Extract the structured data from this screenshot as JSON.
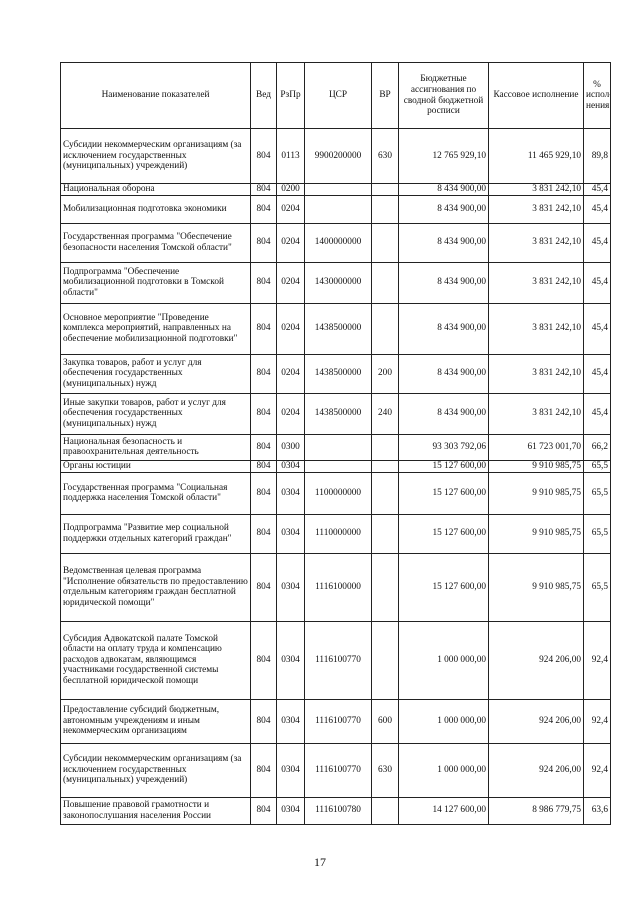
{
  "table": {
    "headers": [
      "Наименование показателей",
      "Вед",
      "РзПр",
      "ЦСР",
      "ВР",
      "Бюджетные ассигнования по сводной бюджетной росписи",
      "Кассовое исполнение",
      "% испол-нения"
    ],
    "rows": [
      {
        "name": "Субсидии некоммерческим организациям (за исключением государственных (муниципальных) учреждений)",
        "ved": "804",
        "rzpr": "0113",
        "csr": "9900200000",
        "vr": "630",
        "budget": "12 765 929,10",
        "cash": "11 465 929,10",
        "pct": "89,8"
      },
      {
        "name": "Национальная оборона",
        "ved": "804",
        "rzpr": "0200",
        "csr": "",
        "vr": "",
        "budget": "8 434 900,00",
        "cash": "3 831 242,10",
        "pct": "45,4"
      },
      {
        "name": "Мобилизационная подготовка экономики",
        "ved": "804",
        "rzpr": "0204",
        "csr": "",
        "vr": "",
        "budget": "8 434 900,00",
        "cash": "3 831 242,10",
        "pct": "45,4"
      },
      {
        "name": "Государственная программа \"Обеспечение безопасности населения Томской области\"",
        "ved": "804",
        "rzpr": "0204",
        "csr": "1400000000",
        "vr": "",
        "budget": "8 434 900,00",
        "cash": "3 831 242,10",
        "pct": "45,4"
      },
      {
        "name": "Подпрограмма \"Обеспечение мобилизационной подготовки в Томской области\"",
        "ved": "804",
        "rzpr": "0204",
        "csr": "1430000000",
        "vr": "",
        "budget": "8 434 900,00",
        "cash": "3 831 242,10",
        "pct": "45,4"
      },
      {
        "name": "Основное мероприятие \"Проведение комплекса мероприятий, направленных на обеспечение мобилизационной подготовки\"",
        "ved": "804",
        "rzpr": "0204",
        "csr": "1438500000",
        "vr": "",
        "budget": "8 434 900,00",
        "cash": "3 831 242,10",
        "pct": "45,4"
      },
      {
        "name": "Закупка товаров, работ и услуг для обеспечения государственных (муниципальных) нужд",
        "ved": "804",
        "rzpr": "0204",
        "csr": "1438500000",
        "vr": "200",
        "budget": "8 434 900,00",
        "cash": "3 831 242,10",
        "pct": "45,4"
      },
      {
        "name": "Иные закупки товаров, работ и услуг для обеспечения государственных (муниципальных) нужд",
        "ved": "804",
        "rzpr": "0204",
        "csr": "1438500000",
        "vr": "240",
        "budget": "8 434 900,00",
        "cash": "3 831 242,10",
        "pct": "45,4"
      },
      {
        "name": "Национальная безопасность и правоохранительная деятельность",
        "ved": "804",
        "rzpr": "0300",
        "csr": "",
        "vr": "",
        "budget": "93 303 792,06",
        "cash": "61 723 001,70",
        "pct": "66,2"
      },
      {
        "name": "Органы юстиции",
        "ved": "804",
        "rzpr": "0304",
        "csr": "",
        "vr": "",
        "budget": "15 127 600,00",
        "cash": "9 910 985,75",
        "pct": "65,5"
      },
      {
        "name": "Государственная программа \"Социальная поддержка населения Томской области\"",
        "ved": "804",
        "rzpr": "0304",
        "csr": "1100000000",
        "vr": "",
        "budget": "15 127 600,00",
        "cash": "9 910 985,75",
        "pct": "65,5"
      },
      {
        "name": "Подпрограмма \"Развитие мер социальной поддержки отдельных категорий граждан\"",
        "ved": "804",
        "rzpr": "0304",
        "csr": "1110000000",
        "vr": "",
        "budget": "15 127 600,00",
        "cash": "9 910 985,75",
        "pct": "65,5"
      },
      {
        "name": "Ведомственная целевая программа \"Исполнение обязательств по предоставлению отдельным категориям граждан бесплатной юридической помощи\"",
        "ved": "804",
        "rzpr": "0304",
        "csr": "1116100000",
        "vr": "",
        "budget": "15 127 600,00",
        "cash": "9 910 985,75",
        "pct": "65,5"
      },
      {
        "name": "Субсидия Адвокатской палате Томской области на оплату труда и компенсацию расходов адвокатам, являющимся участниками государственной системы бесплатной юридической помощи",
        "ved": "804",
        "rzpr": "0304",
        "csr": "1116100770",
        "vr": "",
        "budget": "1 000 000,00",
        "cash": "924 206,00",
        "pct": "92,4"
      },
      {
        "name": "Предоставление субсидий бюджетным, автономным учреждениям и иным некоммерческим организациям",
        "ved": "804",
        "rzpr": "0304",
        "csr": "1116100770",
        "vr": "600",
        "budget": "1 000 000,00",
        "cash": "924 206,00",
        "pct": "92,4"
      },
      {
        "name": "Субсидии некоммерческим организациям (за исключением государственных (муниципальных) учреждений)",
        "ved": "804",
        "rzpr": "0304",
        "csr": "1116100770",
        "vr": "630",
        "budget": "1 000 000,00",
        "cash": "924 206,00",
        "pct": "92,4"
      },
      {
        "name": "Повышение правовой грамотности и законопослушания населения России",
        "ved": "804",
        "rzpr": "0304",
        "csr": "1116100780",
        "vr": "",
        "budget": "14 127 600,00",
        "cash": "8 986 779,75",
        "pct": "63,6"
      }
    ]
  },
  "page_number": "17"
}
